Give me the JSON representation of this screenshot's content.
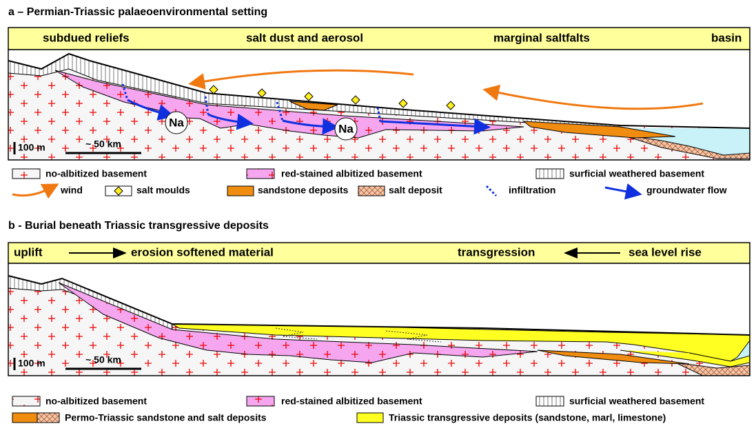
{
  "panel_a": {
    "title": "a – Permian-Triassic palaeoenvironmental setting",
    "header": [
      "subdued reliefs",
      "salt dust and aerosol",
      "marginal saltfalts",
      "basin"
    ],
    "na_labels": [
      "Na",
      "Na"
    ],
    "scale": {
      "height": "100 m",
      "length": "~ 50 km"
    },
    "legend": [
      "no-albitized basement",
      "red-stained albitized basement",
      "surficial weathered basement",
      "wind",
      "salt moulds",
      "sandstone deposits",
      "salt deposit",
      "infiltration",
      "groundwater flow"
    ]
  },
  "panel_b": {
    "title": "b - Burial beneath Triassic transgressive deposits",
    "header": [
      "uplift",
      "erosion softened material",
      "transgression",
      "sea level rise"
    ],
    "scale": {
      "height": "100 m",
      "length": "~ 50 km"
    },
    "legend": [
      "no-albitized basement",
      "red-stained albitized basement",
      "surficial weathered basement",
      "Permo-Triassic sandstone and salt deposits",
      "Triassic transgressive deposits (sandstone, marl, limestone)"
    ]
  }
}
